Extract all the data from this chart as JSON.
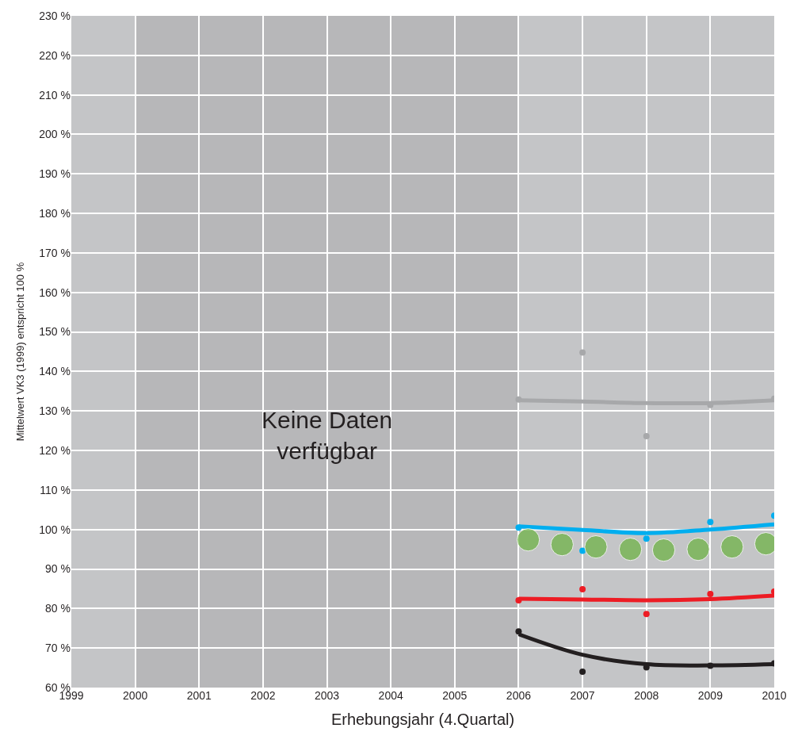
{
  "chart_data": {
    "type": "scatter",
    "xlabel": "Erhebungsjahr (4.Quartal)",
    "ylabel": "Mittelwert VK3 (1999) entspricht 100 %",
    "xlim": [
      1999,
      2010
    ],
    "xticks": [
      1999,
      2000,
      2001,
      2002,
      2003,
      2004,
      2005,
      2006,
      2007,
      2008,
      2009,
      2010
    ],
    "ylim": [
      60,
      230
    ],
    "yticks": [
      {
        "value": 60,
        "label": "60 %"
      },
      {
        "value": 70,
        "label": "70 %"
      },
      {
        "value": 80,
        "label": "80 %"
      },
      {
        "value": 90,
        "label": "90 %"
      },
      {
        "value": 100,
        "label": "100 %"
      },
      {
        "value": 110,
        "label": "110 %"
      },
      {
        "value": 120,
        "label": "120 %"
      },
      {
        "value": 130,
        "label": "130 %"
      },
      {
        "value": 140,
        "label": "140 %"
      },
      {
        "value": 150,
        "label": "150 %"
      },
      {
        "value": 160,
        "label": "160 %"
      },
      {
        "value": 170,
        "label": "170 %"
      },
      {
        "value": 180,
        "label": "180 %"
      },
      {
        "value": 190,
        "label": "190 %"
      },
      {
        "value": 200,
        "label": "200 %"
      },
      {
        "value": 210,
        "label": "210 %"
      },
      {
        "value": 220,
        "label": "220 %"
      },
      {
        "value": 230,
        "label": "230 %"
      }
    ],
    "grid": true,
    "bands": [
      {
        "axis": "x",
        "from": 2000,
        "to": 2006,
        "label": "Keine Daten\nverfügbar",
        "color": "#a9aaac"
      }
    ],
    "x": [
      2006,
      2007,
      2008,
      2009,
      2010
    ],
    "series": [
      {
        "type": "line",
        "marker": "none",
        "color": "#a7a8aa",
        "values": [
          132.7,
          132.4,
          132.0,
          132.0,
          132.7
        ]
      },
      {
        "marker": "circle",
        "color": "#a7a8aa",
        "values": [
          132.9,
          144.8,
          123.6,
          131.5,
          133.1
        ]
      },
      {
        "type": "line",
        "marker": "none",
        "color": "#00aeef",
        "values": [
          100.8,
          99.9,
          99.1,
          100.0,
          101.3
        ]
      },
      {
        "marker": "circle",
        "color": "#00aeef",
        "values": [
          100.5,
          94.6,
          97.7,
          101.9,
          103.5
        ]
      },
      {
        "type": "bubble",
        "color": "#6ab23f",
        "x": [
          2006.15,
          2006.68,
          2007.21,
          2007.75,
          2008.27,
          2008.81,
          2009.34,
          2009.87
        ],
        "values": [
          97.4,
          96.2,
          95.6,
          95.0,
          94.8,
          95.0,
          95.6,
          96.4
        ],
        "sizes": [
          1,
          1,
          1,
          1,
          1,
          1,
          1,
          1
        ]
      },
      {
        "type": "line",
        "marker": "none",
        "color": "#ed1c24",
        "values": [
          82.5,
          82.3,
          82.1,
          82.4,
          83.3
        ]
      },
      {
        "marker": "circle",
        "color": "#ed1c24",
        "values": [
          82.1,
          84.9,
          78.6,
          83.7,
          84.3
        ]
      },
      {
        "type": "line",
        "marker": "none",
        "color": "#231f20",
        "values": [
          73.5,
          68.3,
          65.9,
          65.6,
          65.9
        ]
      },
      {
        "marker": "circle",
        "color": "#231f20",
        "values": [
          74.2,
          64.0,
          65.1,
          65.5,
          66.1
        ]
      }
    ]
  }
}
